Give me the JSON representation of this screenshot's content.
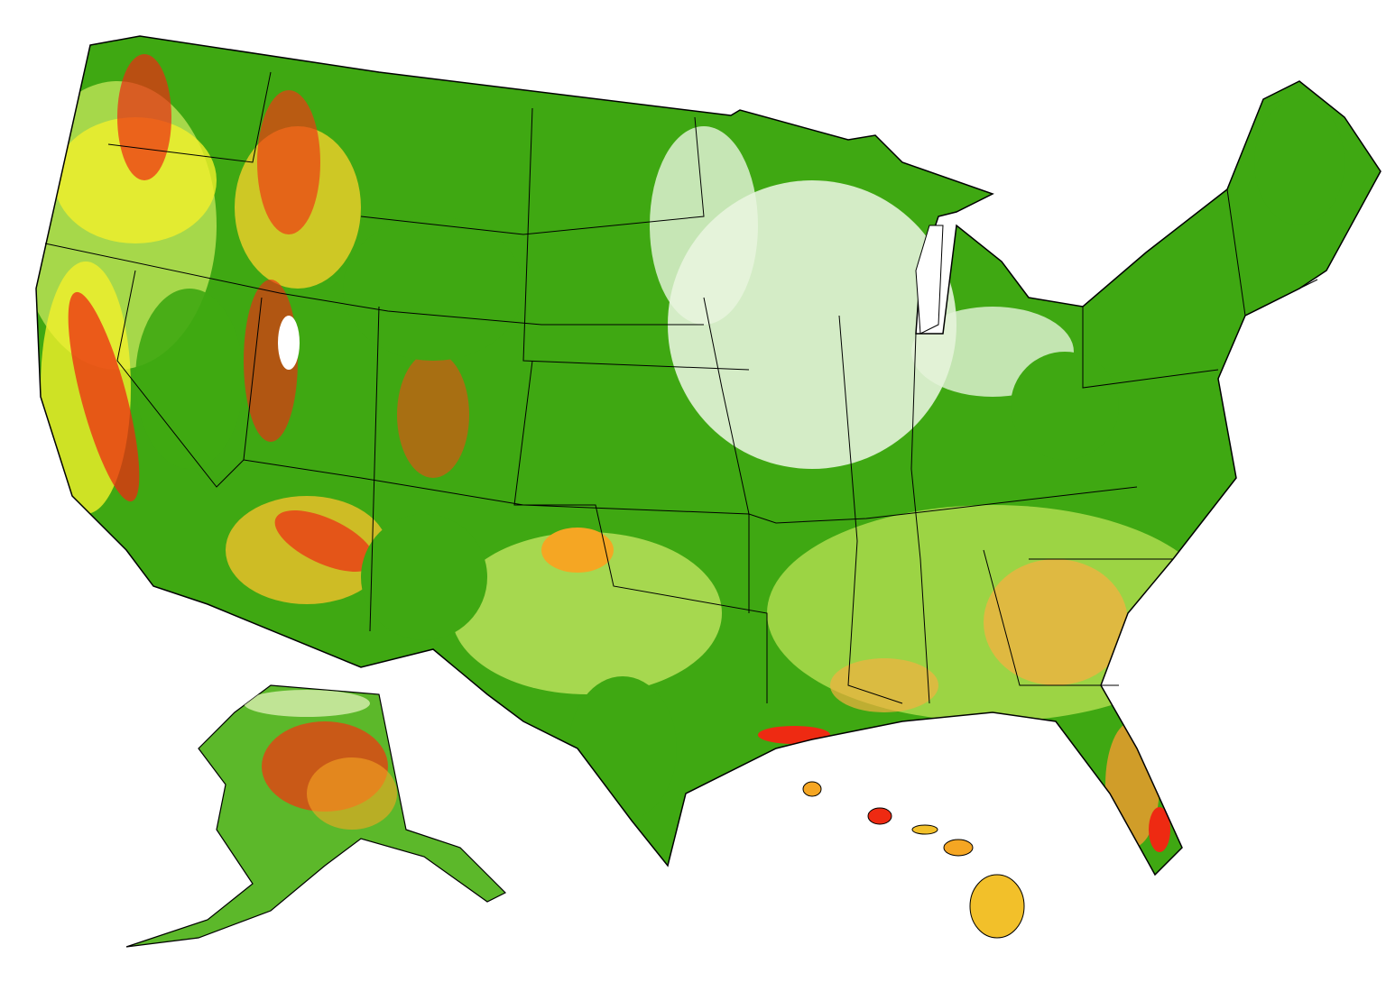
{
  "map": {
    "colors": {
      "background": "#ffffff",
      "base_green": "#3fa812",
      "light_green": "#a6d84a",
      "pale_green": "#d9efb0",
      "yellow": "#f2f02a",
      "orange": "#f5a623",
      "red": "#ee2a12",
      "sparse_white": "#f4fbef",
      "border": "#000000"
    },
    "regions": [
      "contiguous-us",
      "alaska",
      "hawaii"
    ]
  }
}
